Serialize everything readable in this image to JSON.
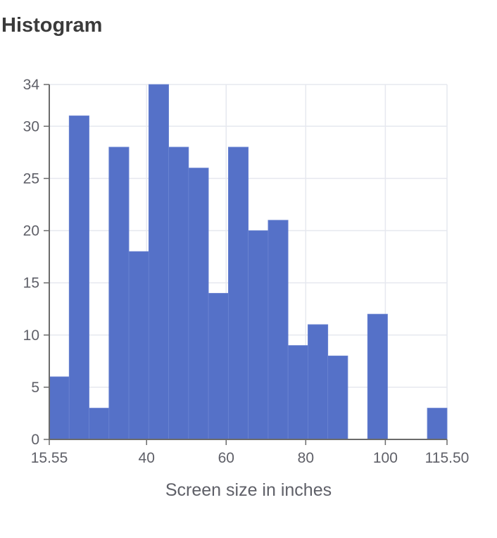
{
  "title": "Histogram",
  "colors": {
    "bar": "#5571c8",
    "bar_edge": "#6b84d2",
    "grid": "#e6e8ef",
    "axis": "#6b6b6b",
    "text": "#5f6068",
    "title": "#3b3b3b"
  },
  "chart_data": {
    "type": "bar",
    "title": "",
    "xlabel": "Screen size in inches",
    "ylabel": "",
    "xlim": [
      15.55,
      115.5
    ],
    "ylim": [
      0,
      34
    ],
    "grid": true,
    "legend": "none",
    "bin_edges": [
      15.55,
      20.55,
      25.55,
      30.55,
      35.55,
      40.55,
      45.55,
      50.55,
      55.55,
      60.55,
      65.55,
      70.55,
      75.55,
      80.55,
      85.55,
      90.55,
      95.55,
      100.55,
      105.55,
      110.55,
      115.5
    ],
    "counts": [
      6,
      31,
      3,
      28,
      18,
      34,
      28,
      26,
      14,
      28,
      20,
      21,
      9,
      11,
      8,
      0,
      12,
      0,
      0,
      3
    ],
    "x_ticks": [
      15.55,
      40,
      60,
      80,
      100,
      115.5
    ],
    "x_tick_labels": [
      "15.55",
      "40",
      "60",
      "80",
      "100",
      "115.50"
    ],
    "y_ticks": [
      0,
      5,
      10,
      15,
      20,
      25,
      30,
      34
    ],
    "y_tick_labels": [
      "0",
      "5",
      "10",
      "15",
      "20",
      "25",
      "30",
      "34"
    ]
  }
}
